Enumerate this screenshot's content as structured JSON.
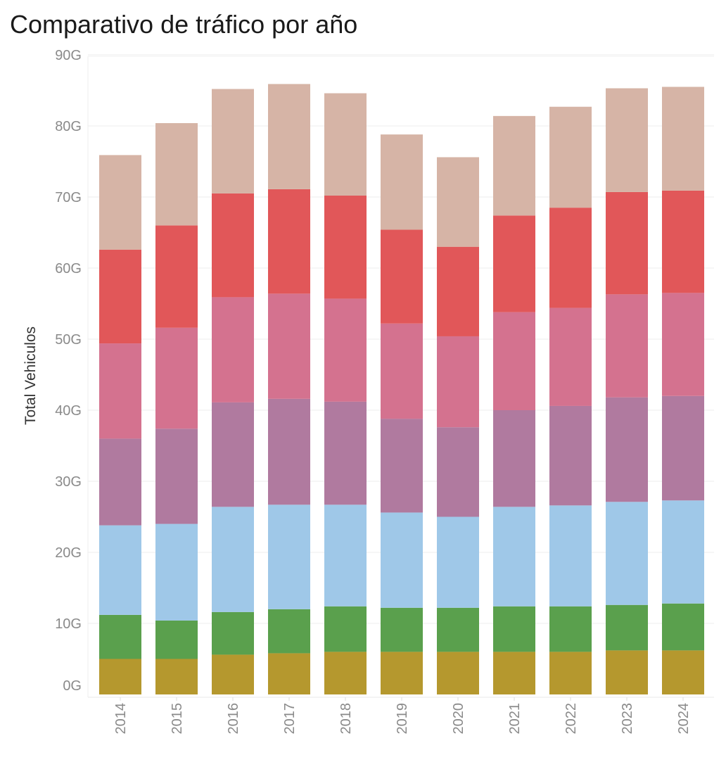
{
  "title": "Comparativo de tráfico por año",
  "chart_data": {
    "type": "bar",
    "stacked": true,
    "title": "Comparativo de tráfico por año",
    "xlabel": "",
    "ylabel": "Total Vehiculos",
    "ylim": [
      0,
      90
    ],
    "y_ticks": [
      "0G",
      "10G",
      "20G",
      "30G",
      "40G",
      "50G",
      "60G",
      "70G",
      "80G",
      "90G"
    ],
    "grid": "horizontal",
    "categories": [
      "2014",
      "2015",
      "2016",
      "2017",
      "2018",
      "2019",
      "2020",
      "2021",
      "2022",
      "2023",
      "2024"
    ],
    "series": [
      {
        "color": "#b5982e",
        "values": [
          5.0,
          5.0,
          5.6,
          5.8,
          6.0,
          6.0,
          6.0,
          6.0,
          6.0,
          6.2,
          6.2
        ]
      },
      {
        "color": "#5aa04d",
        "values": [
          6.2,
          5.4,
          6.0,
          6.2,
          6.4,
          6.2,
          6.2,
          6.4,
          6.4,
          6.4,
          6.6
        ]
      },
      {
        "color": "#9fc8e8",
        "values": [
          12.6,
          13.6,
          14.8,
          14.7,
          14.3,
          13.4,
          12.8,
          14.0,
          14.2,
          14.5,
          14.5
        ]
      },
      {
        "color": "#b07a9f",
        "values": [
          12.2,
          13.4,
          14.7,
          14.9,
          14.5,
          13.2,
          12.6,
          13.6,
          14.0,
          14.7,
          14.7
        ]
      },
      {
        "color": "#d4728f",
        "values": [
          13.4,
          14.2,
          14.8,
          14.8,
          14.5,
          13.4,
          12.8,
          13.8,
          13.8,
          14.5,
          14.5
        ]
      },
      {
        "color": "#e15759",
        "values": [
          13.2,
          14.4,
          14.6,
          14.7,
          14.5,
          13.2,
          12.6,
          13.6,
          14.1,
          14.4,
          14.4
        ]
      },
      {
        "color": "#d6b4a6",
        "values": [
          13.3,
          14.4,
          14.7,
          14.8,
          14.4,
          13.4,
          12.6,
          14.0,
          14.2,
          14.6,
          14.6
        ]
      }
    ]
  }
}
